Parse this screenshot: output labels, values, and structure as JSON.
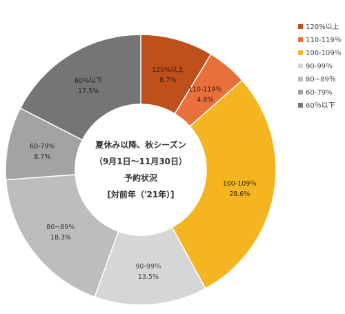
{
  "chart_data": {
    "type": "pie",
    "donut": true,
    "center_title_lines": [
      "夏休み以降、秋シーズン",
      "（9月1日～11月30日）",
      "予約状況",
      "[対前年（'21年）]"
    ],
    "slices": [
      {
        "label": "120%以上",
        "value": 8.7,
        "value_label": "8.7%",
        "color": "#c0501b",
        "text_color": "#3a1a0a"
      },
      {
        "label": "110-119％",
        "value": 4.8,
        "value_label": "4.8%",
        "color": "#e8703a",
        "text_color": "#3a1a0a"
      },
      {
        "label": "100-109％",
        "value": 28.6,
        "value_label": "28.6%",
        "color": "#f5b520",
        "text_color": "#3a2a00"
      },
      {
        "label": "90-99％",
        "value": 13.5,
        "value_label": "13.5%",
        "color": "#d6d6d6",
        "text_color": "#444444"
      },
      {
        "label": "80~89％",
        "value": 18.3,
        "value_label": "18.3%",
        "color": "#bdbdbd",
        "text_color": "#333333"
      },
      {
        "label": "60-79%",
        "value": 8.7,
        "value_label": "8.7%",
        "color": "#a3a3a3",
        "text_color": "#2a2a2a"
      },
      {
        "label": "60％以下",
        "value": 17.5,
        "value_label": "17.5%",
        "color": "#757575",
        "text_color": "#222222"
      }
    ],
    "legend": {
      "placement": "top-right",
      "entries": [
        "120%以上",
        "110-119％",
        "100-109％",
        "90-99％",
        "80~89％",
        "60-79%",
        "60％以下"
      ]
    }
  }
}
